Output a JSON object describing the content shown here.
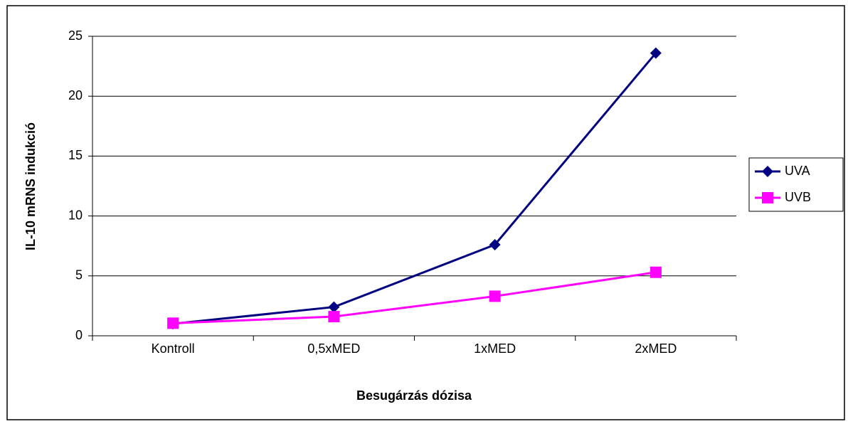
{
  "chart_data": {
    "type": "line",
    "categories": [
      "Kontroll",
      "0,5xMED",
      "1xMED",
      "2xMED"
    ],
    "series": [
      {
        "name": "UVA",
        "color": "#000080",
        "marker": "diamond",
        "values": [
          1.0,
          2.4,
          7.6,
          23.6
        ]
      },
      {
        "name": "UVB",
        "color": "#ff00ff",
        "marker": "square",
        "values": [
          1.05,
          1.6,
          3.3,
          5.3
        ]
      }
    ],
    "x_label": "Besugárzás dózisa",
    "y_label": "IL-10 mRNS indukció",
    "ylim": [
      0,
      25
    ],
    "yticks": [
      0,
      5,
      10,
      15,
      20,
      25
    ],
    "grid": true,
    "legend": "right"
  }
}
